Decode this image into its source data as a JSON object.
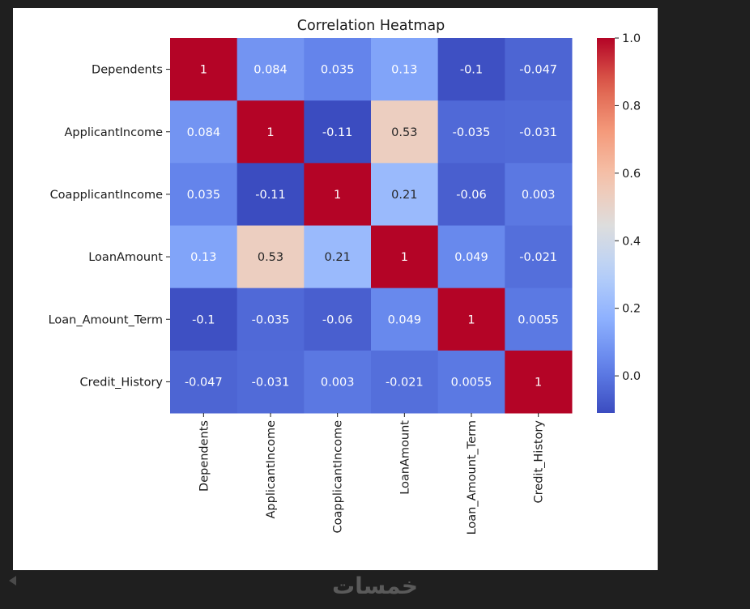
{
  "footer": {
    "logo_text": "خمسات",
    "back_icon": "caret-left-icon"
  },
  "chart_data": {
    "type": "heatmap",
    "title": "Correlation Heatmap",
    "xlabel": "",
    "ylabel": "",
    "colormap": "coolwarm",
    "vmin": -0.11,
    "vmax": 1.0,
    "row_labels": [
      "Dependents",
      "ApplicantIncome",
      "CoapplicantIncome",
      "LoanAmount",
      "Loan_Amount_Term",
      "Credit_History"
    ],
    "col_labels": [
      "Dependents",
      "ApplicantIncome",
      "CoapplicantIncome",
      "LoanAmount",
      "Loan_Amount_Term",
      "Credit_History"
    ],
    "values": [
      [
        1,
        0.084,
        0.035,
        0.13,
        -0.1,
        -0.047
      ],
      [
        0.084,
        1,
        -0.11,
        0.53,
        -0.035,
        -0.031
      ],
      [
        0.035,
        -0.11,
        1,
        0.21,
        -0.06,
        0.003
      ],
      [
        0.13,
        0.53,
        0.21,
        1,
        0.049,
        -0.021
      ],
      [
        -0.1,
        -0.035,
        -0.06,
        0.049,
        1,
        0.0055
      ],
      [
        -0.047,
        -0.031,
        0.003,
        -0.021,
        0.0055,
        1
      ]
    ],
    "annotations": [
      [
        "1",
        "0.084",
        "0.035",
        "0.13",
        "-0.1",
        "-0.047"
      ],
      [
        "0.084",
        "1",
        "-0.11",
        "0.53",
        "-0.035",
        "-0.031"
      ],
      [
        "0.035",
        "-0.11",
        "1",
        "0.21",
        "-0.06",
        "0.003"
      ],
      [
        "0.13",
        "0.53",
        "0.21",
        "1",
        "0.049",
        "-0.021"
      ],
      [
        "-0.1",
        "-0.035",
        "-0.06",
        "0.049",
        "1",
        "0.0055"
      ],
      [
        "-0.047",
        "-0.031",
        "0.003",
        "-0.021",
        "0.0055",
        "1"
      ]
    ],
    "colorbar": {
      "ticks": [
        0.0,
        0.2,
        0.4,
        0.6,
        0.8,
        1.0
      ],
      "tick_labels": [
        "0.0",
        "0.2",
        "0.4",
        "0.6",
        "0.8",
        "1.0"
      ],
      "placement": "right"
    },
    "grid": false,
    "legend": "none"
  }
}
